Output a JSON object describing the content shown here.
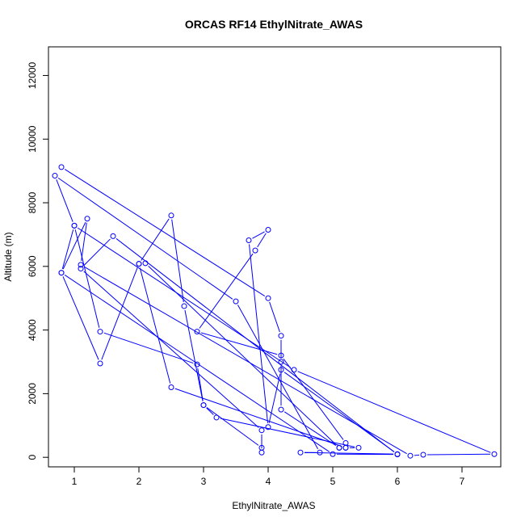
{
  "chart_data": {
    "type": "line",
    "title": "ORCAS RF14 EthylNitrate_AWAS",
    "xlabel": "EthylNitrate_AWAS",
    "ylabel": "Altitude (m)",
    "xlim": [
      0.6,
      7.6
    ],
    "ylim": [
      -300,
      12900
    ],
    "x_ticks": [
      1,
      2,
      3,
      4,
      5,
      6,
      7
    ],
    "y_ticks": [
      0,
      2000,
      4000,
      6000,
      8000,
      10000,
      12000
    ],
    "grid": false,
    "legend": "none",
    "series_color": "#0000ff",
    "series": [
      {
        "marker": "open-circle",
        "points": [
          [
            0.8,
            9120
          ],
          [
            4.0,
            5000
          ],
          [
            4.2,
            3820
          ],
          [
            4.2,
            3000
          ],
          [
            4.2,
            1500
          ],
          [
            5.1,
            300
          ],
          [
            5.2,
            450
          ],
          [
            4.2,
            3200
          ],
          [
            2.9,
            3950
          ],
          [
            3.8,
            6500
          ],
          [
            4.0,
            7150
          ],
          [
            3.7,
            6820
          ],
          [
            4.0,
            950
          ],
          [
            4.2,
            2750
          ],
          [
            6.0,
            100
          ],
          [
            4.5,
            150
          ],
          [
            4.8,
            150
          ],
          [
            3.5,
            4900
          ],
          [
            0.7,
            8850
          ],
          [
            1.0,
            7280
          ],
          [
            4.4,
            2750
          ],
          [
            7.5,
            100
          ],
          [
            6.4,
            80
          ],
          [
            6.2,
            50
          ],
          [
            1.1,
            6050
          ],
          [
            1.2,
            7500
          ],
          [
            0.8,
            5800
          ],
          [
            5.0,
            100
          ],
          [
            6.0,
            90
          ],
          [
            1.6,
            6950
          ],
          [
            1.1,
            5930
          ],
          [
            3.9,
            850
          ],
          [
            3.9,
            150
          ],
          [
            3.9,
            300
          ],
          [
            3.0,
            1640
          ],
          [
            2.7,
            4750
          ],
          [
            2.5,
            7600
          ],
          [
            2.0,
            6080
          ],
          [
            2.1,
            6100
          ],
          [
            5.1,
            300
          ],
          [
            5.2,
            300
          ],
          [
            5.4,
            300
          ],
          [
            3.2,
            1250
          ],
          [
            3.0,
            1640
          ],
          [
            2.9,
            2920
          ],
          [
            1.4,
            3950
          ],
          [
            1.0,
            7280
          ],
          [
            0.8,
            5800
          ],
          [
            1.4,
            2950
          ],
          [
            2.0,
            6080
          ],
          [
            2.5,
            2200
          ],
          [
            5.2,
            300
          ]
        ]
      }
    ]
  }
}
